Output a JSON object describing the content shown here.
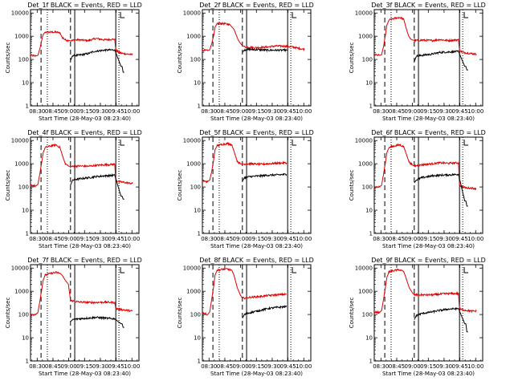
{
  "page": {
    "x_axis_label": "Start Time (28-May-03 08:23:40)",
    "y_axis_label": "Counts/sec"
  },
  "colors": {
    "black_series": "#000000",
    "red_series": "#e00000"
  },
  "common_axes": {
    "x_tick_labels": [
      "08:30",
      "08:45",
      "09:00",
      "09:15",
      "09:30",
      "09:45",
      "10:00"
    ],
    "x_tick_minutes": [
      6.33,
      21.33,
      36.33,
      51.33,
      66.33,
      81.33,
      96.33
    ],
    "xlim_minutes_from_start": [
      0,
      103
    ],
    "y_tick_labels": [
      "1",
      "10",
      "100",
      "1000",
      "10000"
    ],
    "y_tick_values": [
      1,
      10,
      100,
      1000,
      10000
    ],
    "ylim": [
      1,
      14000
    ],
    "yscale": "log"
  },
  "chart_data": [
    {
      "type": "line",
      "title": "Det_1f BLACK = Events, RED = LLD",
      "xlabel": "Start Time (28-May-03 08:23:40)",
      "ylabel": "Counts/sec",
      "dashed_marker_minutes": [
        10,
        38
      ],
      "dotted_marker_minutes": [
        16,
        84
      ],
      "solid_marker_minutes": [
        42,
        81
      ],
      "series": [
        {
          "name": "LLD",
          "color": "red",
          "x": [
            0,
            5,
            7,
            9,
            11,
            12,
            14,
            20,
            24,
            28,
            30,
            33,
            36,
            38,
            45,
            55,
            62,
            70,
            80,
            81,
            84,
            88,
            92,
            97
          ],
          "y": [
            150,
            140,
            150,
            300,
            800,
            1200,
            1500,
            1500,
            1500,
            1400,
            900,
            700,
            650,
            650,
            700,
            650,
            800,
            700,
            750,
            250,
            200,
            180,
            170,
            160
          ]
        },
        {
          "name": "Events",
          "color": "black",
          "x": [
            38,
            40,
            45,
            55,
            60,
            70,
            80,
            86,
            87,
            88,
            89
          ],
          "y": [
            90,
            150,
            150,
            180,
            220,
            250,
            260,
            50,
            50,
            28,
            28
          ]
        }
      ]
    },
    {
      "type": "line",
      "title": "Det_2f BLACK = Events, RED = LLD",
      "xlabel": "Start Time (28-May-03 08:23:40)",
      "ylabel": "Counts/sec",
      "dashed_marker_minutes": [
        10,
        38
      ],
      "dotted_marker_minutes": [
        16,
        84
      ],
      "solid_marker_minutes": [
        42,
        81
      ],
      "series": [
        {
          "name": "LLD",
          "color": "red",
          "x": [
            0,
            5,
            7,
            9,
            11,
            12,
            14,
            20,
            26,
            30,
            34,
            36,
            38,
            40,
            50,
            60,
            70,
            80,
            85,
            90,
            97
          ],
          "y": [
            250,
            240,
            260,
            500,
            1200,
            2500,
            3500,
            3500,
            3200,
            2000,
            700,
            500,
            400,
            350,
            320,
            340,
            380,
            370,
            350,
            310,
            270
          ]
        },
        {
          "name": "Events",
          "color": "black",
          "x": [
            38,
            40,
            45,
            55,
            62,
            70,
            80,
            81
          ],
          "y": [
            200,
            260,
            270,
            260,
            250,
            250,
            250,
            250
          ]
        }
      ]
    },
    {
      "type": "line",
      "title": "Det_3f BLACK = Events, RED = LLD",
      "xlabel": "Start Time (28-May-03 08:23:40)",
      "ylabel": "Counts/sec",
      "dashed_marker_minutes": [
        10,
        38
      ],
      "dotted_marker_minutes": [
        16,
        84
      ],
      "solid_marker_minutes": [
        42,
        81
      ],
      "series": [
        {
          "name": "LLD",
          "color": "red",
          "x": [
            0,
            5,
            7,
            9,
            11,
            12,
            14,
            20,
            24,
            28,
            30,
            33,
            36,
            38,
            45,
            55,
            62,
            70,
            80,
            81,
            84,
            88,
            92,
            97
          ],
          "y": [
            160,
            150,
            160,
            400,
            1500,
            3000,
            5000,
            6000,
            6500,
            5500,
            2500,
            900,
            700,
            650,
            680,
            650,
            720,
            650,
            700,
            250,
            200,
            190,
            180,
            170
          ]
        },
        {
          "name": "Events",
          "color": "black",
          "x": [
            38,
            40,
            45,
            55,
            62,
            70,
            80,
            86,
            87,
            88,
            89
          ],
          "y": [
            80,
            140,
            150,
            170,
            200,
            210,
            220,
            50,
            50,
            35,
            35
          ]
        }
      ]
    },
    {
      "type": "line",
      "title": "Det_4f BLACK = Events, RED = LLD",
      "xlabel": "Start Time (28-May-03 08:23:40)",
      "ylabel": "Counts/sec",
      "dashed_marker_minutes": [
        10,
        38
      ],
      "dotted_marker_minutes": [
        16,
        84
      ],
      "solid_marker_minutes": [
        42,
        81
      ],
      "series": [
        {
          "name": "LLD",
          "color": "red",
          "x": [
            0,
            5,
            7,
            9,
            11,
            12,
            14,
            20,
            24,
            28,
            30,
            33,
            36,
            38,
            45,
            55,
            62,
            70,
            80,
            81,
            84,
            88,
            92,
            97
          ],
          "y": [
            120,
            110,
            130,
            400,
            1500,
            3000,
            5000,
            6000,
            6500,
            5000,
            2500,
            1000,
            800,
            750,
            800,
            780,
            850,
            900,
            950,
            200,
            170,
            160,
            150,
            140
          ]
        },
        {
          "name": "Events",
          "color": "black",
          "x": [
            38,
            40,
            45,
            55,
            62,
            70,
            80,
            86,
            87,
            88,
            89
          ],
          "y": [
            120,
            200,
            220,
            250,
            280,
            300,
            320,
            40,
            40,
            30,
            30
          ]
        }
      ]
    },
    {
      "type": "line",
      "title": "Det_5f BLACK = Events, RED = LLD",
      "xlabel": "Start Time (28-May-03 08:23:40)",
      "ylabel": "Counts/sec",
      "dashed_marker_minutes": [
        10,
        38
      ],
      "dotted_marker_minutes": [
        16,
        84
      ],
      "solid_marker_minutes": [
        42,
        81
      ],
      "series": [
        {
          "name": "LLD",
          "color": "red",
          "x": [
            0,
            5,
            7,
            9,
            11,
            12,
            14,
            20,
            24,
            28,
            30,
            33,
            36,
            38,
            45,
            55,
            62,
            70,
            80
          ],
          "y": [
            180,
            170,
            200,
            500,
            1800,
            4000,
            6000,
            7000,
            7500,
            6500,
            3500,
            1300,
            1000,
            950,
            1000,
            950,
            1000,
            1050,
            1100
          ]
        },
        {
          "name": "Events",
          "color": "black",
          "x": [
            38,
            40,
            45,
            55,
            62,
            70,
            80
          ],
          "y": [
            180,
            250,
            280,
            300,
            320,
            330,
            350
          ]
        }
      ]
    },
    {
      "type": "line",
      "title": "Det_6f BLACK = Events, RED = LLD",
      "xlabel": "Start Time (28-May-03 08:23:40)",
      "ylabel": "Counts/sec",
      "dashed_marker_minutes": [
        10,
        38
      ],
      "dotted_marker_minutes": [
        16,
        84
      ],
      "solid_marker_minutes": [
        42,
        81
      ],
      "series": [
        {
          "name": "LLD",
          "color": "red",
          "x": [
            0,
            5,
            7,
            9,
            11,
            12,
            14,
            20,
            24,
            28,
            30,
            33,
            36,
            38,
            45,
            55,
            62,
            70,
            80,
            81,
            84,
            88,
            92,
            97
          ],
          "y": [
            100,
            100,
            120,
            400,
            1500,
            3000,
            5000,
            6000,
            6500,
            5500,
            3000,
            1200,
            900,
            800,
            900,
            1000,
            1100,
            1050,
            1100,
            120,
            100,
            90,
            90,
            85
          ]
        },
        {
          "name": "Events",
          "color": "black",
          "x": [
            38,
            40,
            45,
            55,
            62,
            70,
            80,
            86,
            87,
            88,
            89
          ],
          "y": [
            150,
            200,
            250,
            300,
            320,
            330,
            350,
            25,
            25,
            15,
            15
          ]
        }
      ]
    },
    {
      "type": "line",
      "title": "Det_7f BLACK = Events, RED = LLD",
      "xlabel": "Start Time (28-May-03 08:23:40)",
      "ylabel": "Counts/sec",
      "dashed_marker_minutes": [
        10,
        38
      ],
      "dotted_marker_minutes": [
        16,
        84
      ],
      "solid_marker_minutes": [
        42,
        81
      ],
      "series": [
        {
          "name": "LLD",
          "color": "red",
          "x": [
            0,
            5,
            7,
            9,
            11,
            12,
            14,
            20,
            24,
            28,
            30,
            33,
            36,
            38,
            45,
            55,
            62,
            70,
            80,
            81,
            84,
            88,
            92,
            97
          ],
          "y": [
            100,
            100,
            120,
            400,
            1500,
            3000,
            5000,
            6000,
            6500,
            6000,
            5000,
            3000,
            2000,
            400,
            350,
            330,
            330,
            340,
            330,
            180,
            170,
            160,
            150,
            140
          ]
        },
        {
          "name": "Events",
          "color": "black",
          "x": [
            38,
            40,
            45,
            55,
            62,
            70,
            80,
            86,
            87,
            88,
            89
          ],
          "y": [
            50,
            60,
            65,
            70,
            75,
            70,
            65,
            40,
            40,
            28,
            28
          ]
        }
      ]
    },
    {
      "type": "line",
      "title": "Det_8f BLACK = Events, RED = LLD",
      "xlabel": "Start Time (28-May-03 08:23:40)",
      "ylabel": "Counts/sec",
      "dashed_marker_minutes": [
        10,
        38
      ],
      "dotted_marker_minutes": [
        16,
        84
      ],
      "solid_marker_minutes": [
        42,
        81
      ],
      "series": [
        {
          "name": "LLD",
          "color": "red",
          "x": [
            0,
            5,
            7,
            9,
            11,
            12,
            14,
            20,
            24,
            28,
            30,
            33,
            36,
            38,
            45,
            55,
            62,
            70,
            80
          ],
          "y": [
            120,
            100,
            130,
            500,
            2000,
            5000,
            8000,
            9000,
            9000,
            8000,
            5000,
            1500,
            700,
            500,
            550,
            600,
            650,
            700,
            750
          ]
        },
        {
          "name": "Events",
          "color": "black",
          "x": [
            38,
            40,
            45,
            55,
            62,
            70,
            80
          ],
          "y": [
            70,
            100,
            120,
            150,
            180,
            200,
            220
          ]
        }
      ]
    },
    {
      "type": "line",
      "title": "Det_9f BLACK = Events, RED = LLD",
      "xlabel": "Start Time (28-May-03 08:23:40)",
      "ylabel": "Counts/sec",
      "dashed_marker_minutes": [
        10,
        38
      ],
      "dotted_marker_minutes": [
        16,
        84
      ],
      "solid_marker_minutes": [
        42,
        81
      ],
      "series": [
        {
          "name": "LLD",
          "color": "red",
          "x": [
            0,
            5,
            7,
            9,
            11,
            12,
            14,
            20,
            24,
            28,
            30,
            33,
            36,
            38,
            45,
            55,
            62,
            70,
            80,
            81,
            84,
            88,
            92,
            97
          ],
          "y": [
            130,
            120,
            150,
            500,
            2000,
            4000,
            7000,
            8000,
            8500,
            7000,
            4000,
            1500,
            900,
            700,
            700,
            700,
            750,
            800,
            800,
            170,
            160,
            150,
            140,
            140
          ]
        },
        {
          "name": "Events",
          "color": "black",
          "x": [
            38,
            40,
            45,
            55,
            62,
            70,
            80,
            86,
            87,
            88,
            89
          ],
          "y": [
            60,
            90,
            110,
            130,
            150,
            170,
            180,
            40,
            40,
            18,
            18
          ]
        }
      ]
    }
  ]
}
